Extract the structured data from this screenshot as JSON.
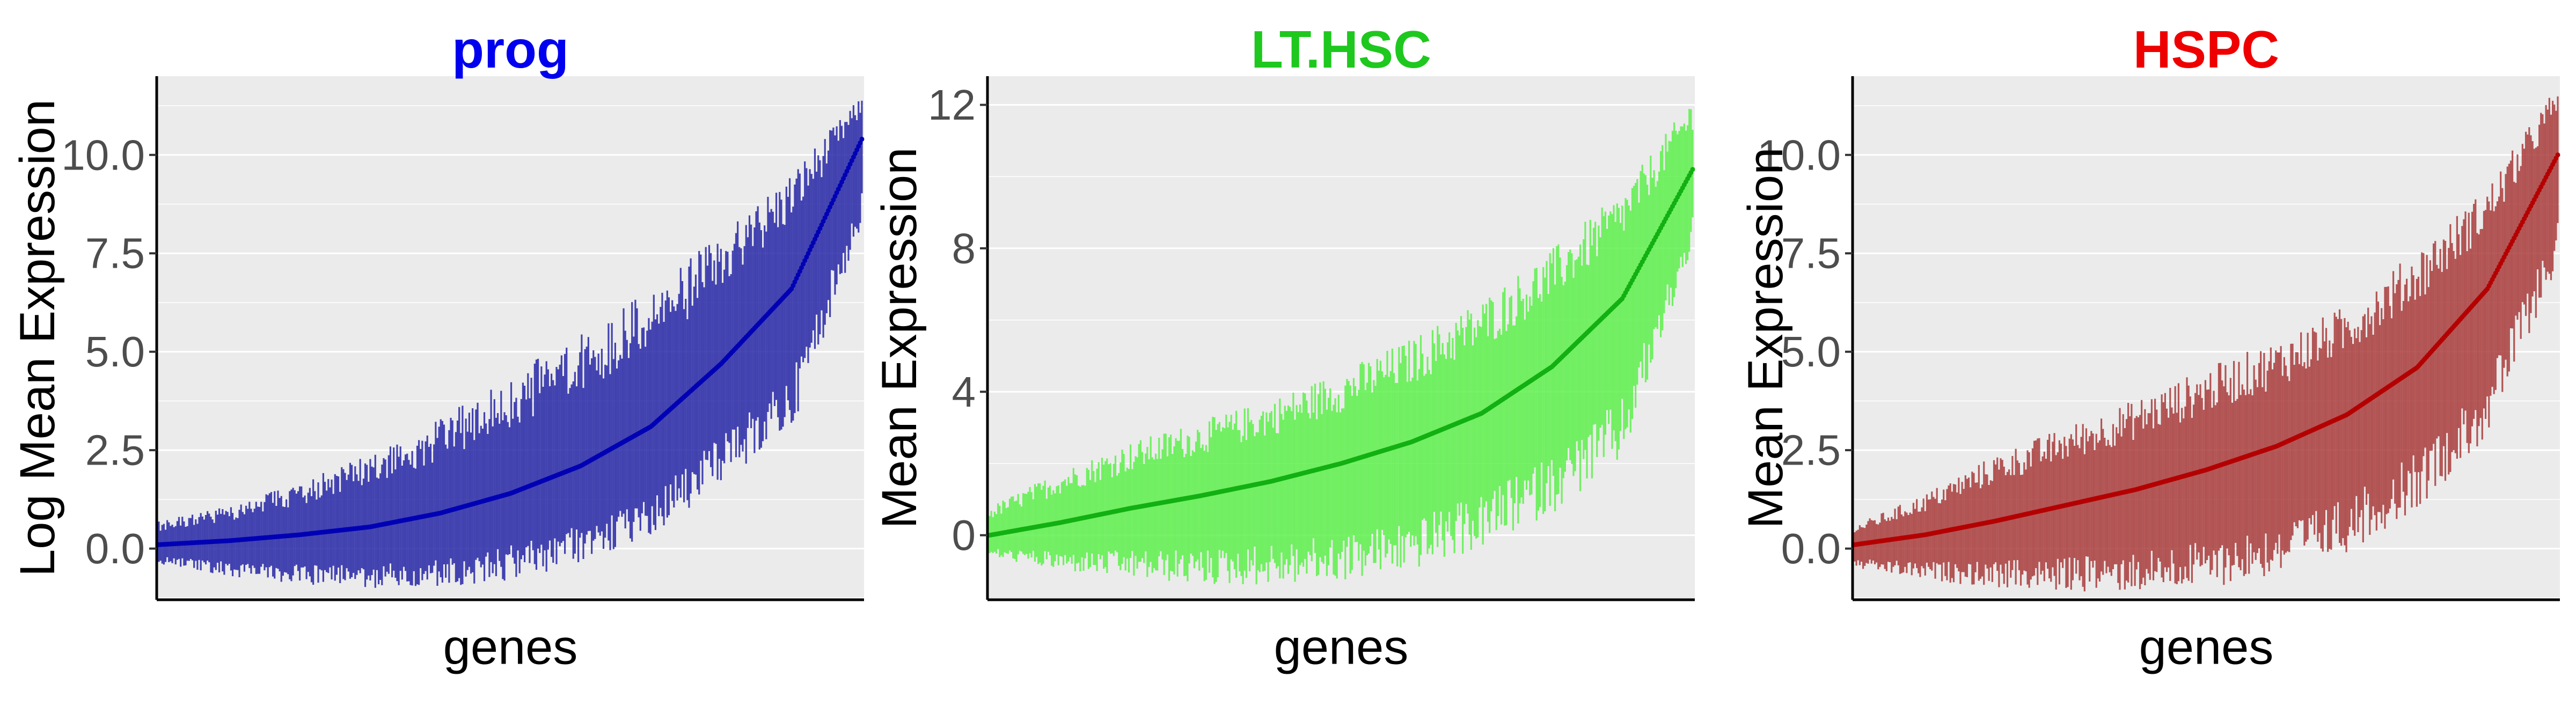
{
  "chart_data": [
    {
      "type": "scatter",
      "title": "prog",
      "title_color": "#0000ee",
      "series_color": "#2424a6",
      "point_color": "#0000b4",
      "xlabel": "genes",
      "ylabel": "Log Mean Expression",
      "ylim": [
        -1.3,
        12.0
      ],
      "yticks": [
        0.0,
        2.5,
        5.0,
        7.5,
        10.0
      ],
      "ytick_labels": [
        "0.0",
        "2.5",
        "5.0",
        "7.5",
        "10.0"
      ],
      "grid": true,
      "background": "#ebebeb",
      "n_genes": 420,
      "mean_curve": [
        [
          0.0,
          0.1
        ],
        [
          0.1,
          0.2
        ],
        [
          0.2,
          0.35
        ],
        [
          0.3,
          0.55
        ],
        [
          0.4,
          0.9
        ],
        [
          0.5,
          1.4
        ],
        [
          0.6,
          2.1
        ],
        [
          0.7,
          3.1
        ],
        [
          0.8,
          4.7
        ],
        [
          0.9,
          6.6
        ],
        [
          1.0,
          10.4
        ]
      ],
      "upper_curve": [
        [
          0.0,
          0.7
        ],
        [
          0.1,
          1.1
        ],
        [
          0.2,
          1.7
        ],
        [
          0.3,
          2.4
        ],
        [
          0.4,
          3.3
        ],
        [
          0.5,
          4.4
        ],
        [
          0.6,
          5.5
        ],
        [
          0.7,
          6.6
        ],
        [
          0.8,
          8.0
        ],
        [
          0.9,
          9.6
        ],
        [
          1.0,
          11.5
        ]
      ],
      "lower_curve": [
        [
          0.0,
          -0.4
        ],
        [
          0.1,
          -0.7
        ],
        [
          0.2,
          -0.9
        ],
        [
          0.3,
          -1.0
        ],
        [
          0.4,
          -1.0
        ],
        [
          0.5,
          -0.8
        ],
        [
          0.6,
          -0.4
        ],
        [
          0.7,
          0.3
        ],
        [
          0.8,
          1.6
        ],
        [
          0.9,
          3.0
        ],
        [
          1.0,
          8.2
        ]
      ]
    },
    {
      "type": "scatter",
      "title": "LT.HSC",
      "title_color": "#1ec81e",
      "series_color": "#5cf04a",
      "point_color": "#12b012",
      "xlabel": "genes",
      "ylabel": "Mean Expression",
      "ylim": [
        -1.8,
        12.8
      ],
      "yticks": [
        0,
        4,
        8,
        12
      ],
      "ytick_labels": [
        "0",
        "4",
        "8",
        "12"
      ],
      "grid": true,
      "background": "#ebebeb",
      "n_genes": 420,
      "mean_curve": [
        [
          0.0,
          0.0
        ],
        [
          0.1,
          0.35
        ],
        [
          0.2,
          0.75
        ],
        [
          0.3,
          1.1
        ],
        [
          0.4,
          1.5
        ],
        [
          0.5,
          2.0
        ],
        [
          0.6,
          2.6
        ],
        [
          0.7,
          3.4
        ],
        [
          0.8,
          4.7
        ],
        [
          0.9,
          6.6
        ],
        [
          1.0,
          10.2
        ]
      ],
      "upper_curve": [
        [
          0.0,
          0.8
        ],
        [
          0.1,
          1.8
        ],
        [
          0.2,
          2.6
        ],
        [
          0.3,
          3.2
        ],
        [
          0.4,
          3.8
        ],
        [
          0.5,
          4.6
        ],
        [
          0.6,
          5.5
        ],
        [
          0.7,
          6.6
        ],
        [
          0.8,
          8.0
        ],
        [
          0.9,
          9.6
        ],
        [
          1.0,
          12.2
        ]
      ],
      "lower_curve": [
        [
          0.0,
          -0.6
        ],
        [
          0.1,
          -1.0
        ],
        [
          0.2,
          -1.2
        ],
        [
          0.3,
          -1.4
        ],
        [
          0.4,
          -1.4
        ],
        [
          0.5,
          -1.3
        ],
        [
          0.6,
          -1.0
        ],
        [
          0.7,
          -0.4
        ],
        [
          0.8,
          0.6
        ],
        [
          0.9,
          2.0
        ],
        [
          1.0,
          8.0
        ]
      ]
    },
    {
      "type": "scatter",
      "title": "HSPC",
      "title_color": "#ee0000",
      "series_color": "#a83a3a",
      "point_color": "#b40000",
      "xlabel": "genes",
      "ylabel": "Mean Expression",
      "ylim": [
        -1.3,
        12.0
      ],
      "yticks": [
        0.0,
        2.5,
        5.0,
        7.5,
        10.0
      ],
      "ytick_labels": [
        "0.0",
        "2.5",
        "5.0",
        "7.5",
        "10.0"
      ],
      "grid": true,
      "background": "#ebebeb",
      "n_genes": 420,
      "mean_curve": [
        [
          0.0,
          0.1
        ],
        [
          0.1,
          0.35
        ],
        [
          0.2,
          0.7
        ],
        [
          0.3,
          1.1
        ],
        [
          0.4,
          1.5
        ],
        [
          0.5,
          2.0
        ],
        [
          0.6,
          2.6
        ],
        [
          0.7,
          3.4
        ],
        [
          0.8,
          4.6
        ],
        [
          0.9,
          6.6
        ],
        [
          1.0,
          10.0
        ]
      ],
      "upper_curve": [
        [
          0.0,
          0.6
        ],
        [
          0.1,
          1.4
        ],
        [
          0.2,
          2.4
        ],
        [
          0.3,
          3.1
        ],
        [
          0.4,
          3.8
        ],
        [
          0.5,
          4.6
        ],
        [
          0.6,
          5.3
        ],
        [
          0.7,
          6.2
        ],
        [
          0.8,
          7.6
        ],
        [
          0.9,
          9.2
        ],
        [
          1.0,
          11.8
        ]
      ],
      "lower_curve": [
        [
          0.0,
          -0.5
        ],
        [
          0.1,
          -0.8
        ],
        [
          0.2,
          -1.0
        ],
        [
          0.3,
          -1.1
        ],
        [
          0.4,
          -1.1
        ],
        [
          0.5,
          -1.0
        ],
        [
          0.6,
          -0.7
        ],
        [
          0.7,
          -0.1
        ],
        [
          0.8,
          1.0
        ],
        [
          0.9,
          2.8
        ],
        [
          1.0,
          7.2
        ]
      ]
    }
  ]
}
